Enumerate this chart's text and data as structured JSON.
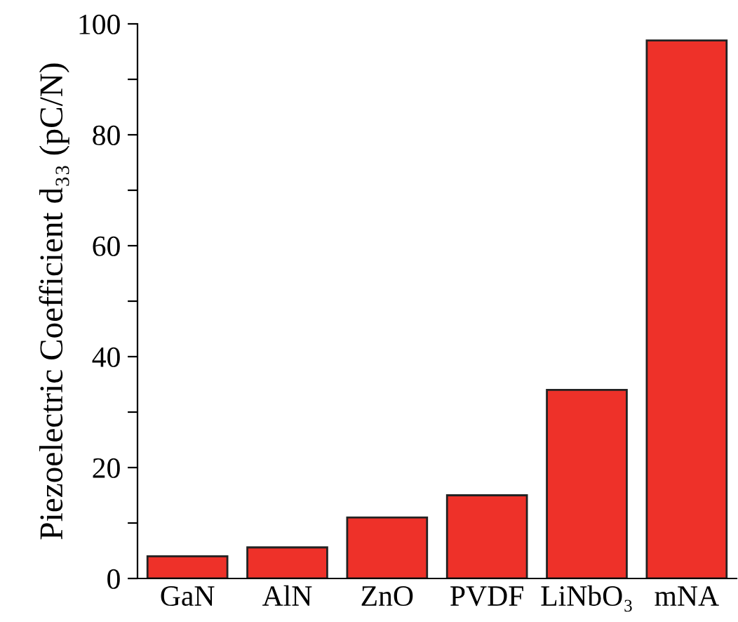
{
  "chart_data": {
    "type": "bar",
    "ylabel": "Piezoelectric Coefficient d₃₃ (pC/N)",
    "categories": [
      "GaN",
      "AlN",
      "ZnO",
      "PVDF",
      "LiNbO₃",
      "mNA"
    ],
    "values": [
      4,
      5.6,
      11,
      15,
      34,
      97
    ],
    "color": "#ee3129",
    "ylim": [
      0,
      100
    ],
    "yticks": [
      0,
      {
        "value": 10,
        "label": null
      },
      20,
      {
        "value": 30,
        "label": null
      },
      40,
      {
        "value": 50,
        "label": null
      },
      60,
      {
        "value": 70,
        "label": null
      },
      80,
      {
        "value": 90,
        "label": null
      },
      100
    ],
    "grid": false
  }
}
